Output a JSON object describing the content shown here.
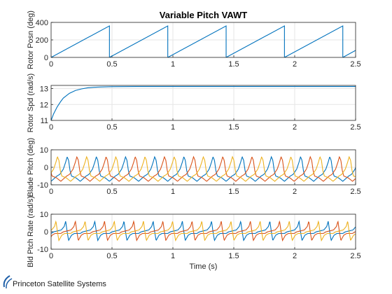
{
  "chart_data": [
    {
      "type": "line",
      "title": "Variable Pitch VAWT",
      "ylabel": "Rotor Posn (deg)",
      "xlabel": "",
      "xlim": [
        0,
        2.5
      ],
      "ylim": [
        0,
        400
      ],
      "xticks": [
        "0",
        "0.5",
        "1",
        "1.5",
        "2",
        "2.5"
      ],
      "yticks": [
        "0",
        "200",
        "400"
      ],
      "grid": true,
      "series": [
        {
          "color": "#0072BD",
          "x": [
            0,
            0.479,
            0.479,
            0.958,
            0.958,
            1.437,
            1.437,
            1.916,
            1.916,
            2.395,
            2.395,
            2.5
          ],
          "y": [
            0,
            360,
            0,
            360,
            0,
            360,
            0,
            360,
            0,
            360,
            0,
            80
          ]
        }
      ]
    },
    {
      "type": "line",
      "title": "",
      "ylabel": "Rotor Spd (rad/s)",
      "xlabel": "",
      "xlim": [
        0,
        2.5
      ],
      "ylim": [
        11,
        13.2
      ],
      "xticks": [
        "0",
        "0.5",
        "1",
        "1.5",
        "2",
        "2.5"
      ],
      "yticks": [
        "11",
        "12",
        "13"
      ],
      "grid": true,
      "series": [
        {
          "color": "#0072BD",
          "x": [
            0,
            0.02,
            0.05,
            0.08,
            0.1,
            0.15,
            0.2,
            0.25,
            0.3,
            0.35,
            0.4,
            0.5,
            0.7,
            1.0,
            1.5,
            2.0,
            2.5
          ],
          "y": [
            11.0,
            11.4,
            11.85,
            12.2,
            12.4,
            12.7,
            12.88,
            12.98,
            13.05,
            13.08,
            13.1,
            13.12,
            13.13,
            13.13,
            13.13,
            13.13,
            13.13
          ]
        }
      ]
    },
    {
      "type": "line",
      "title": "",
      "ylabel": "Blade Pitch (deg)",
      "xlabel": "",
      "xlim": [
        0,
        2.5
      ],
      "ylim": [
        -10,
        10
      ],
      "xticks": [
        "0",
        "0.5",
        "1",
        "1.5",
        "2",
        "2.5"
      ],
      "yticks": [
        "-10",
        "0",
        "10"
      ],
      "grid": true,
      "periodic": {
        "period": 0.2395,
        "offsets": [
          0,
          0.0798,
          0.1597
        ]
      },
      "waveform": {
        "phase": [
          0,
          0.2,
          0.3,
          0.42,
          0.5,
          0.55,
          0.6,
          0.65,
          0.7,
          0.85,
          1.0
        ],
        "value": [
          -8,
          -5,
          -4,
          -1,
          3,
          6,
          4,
          -2,
          -5,
          -6,
          -8
        ]
      },
      "series": [
        {
          "color": "#0072BD"
        },
        {
          "color": "#D95319"
        },
        {
          "color": "#EDB120"
        }
      ]
    },
    {
      "type": "line",
      "title": "",
      "ylabel": "Bld Ptch Rate (rad/s)",
      "xlabel": "Time (s)",
      "xlim": [
        0,
        2.5
      ],
      "ylim": [
        -10,
        10
      ],
      "xticks": [
        "0",
        "0.5",
        "1",
        "1.5",
        "2",
        "2.5"
      ],
      "yticks": [
        "-10",
        "0",
        "10"
      ],
      "grid": true,
      "periodic": {
        "period": 0.2395,
        "offsets": [
          0,
          0.0798,
          0.1597
        ]
      },
      "waveform": {
        "phase": [
          0,
          0.1,
          0.35,
          0.45,
          0.5,
          0.55,
          0.6,
          0.7,
          0.8,
          1.0
        ],
        "value": [
          -1,
          0,
          1,
          3,
          6,
          0,
          -5,
          -2,
          -1,
          -1
        ]
      },
      "series": [
        {
          "color": "#0072BD"
        },
        {
          "color": "#D95319"
        },
        {
          "color": "#EDB120"
        }
      ]
    }
  ],
  "footer": {
    "logo_text": "Princeton Satellite Systems"
  }
}
